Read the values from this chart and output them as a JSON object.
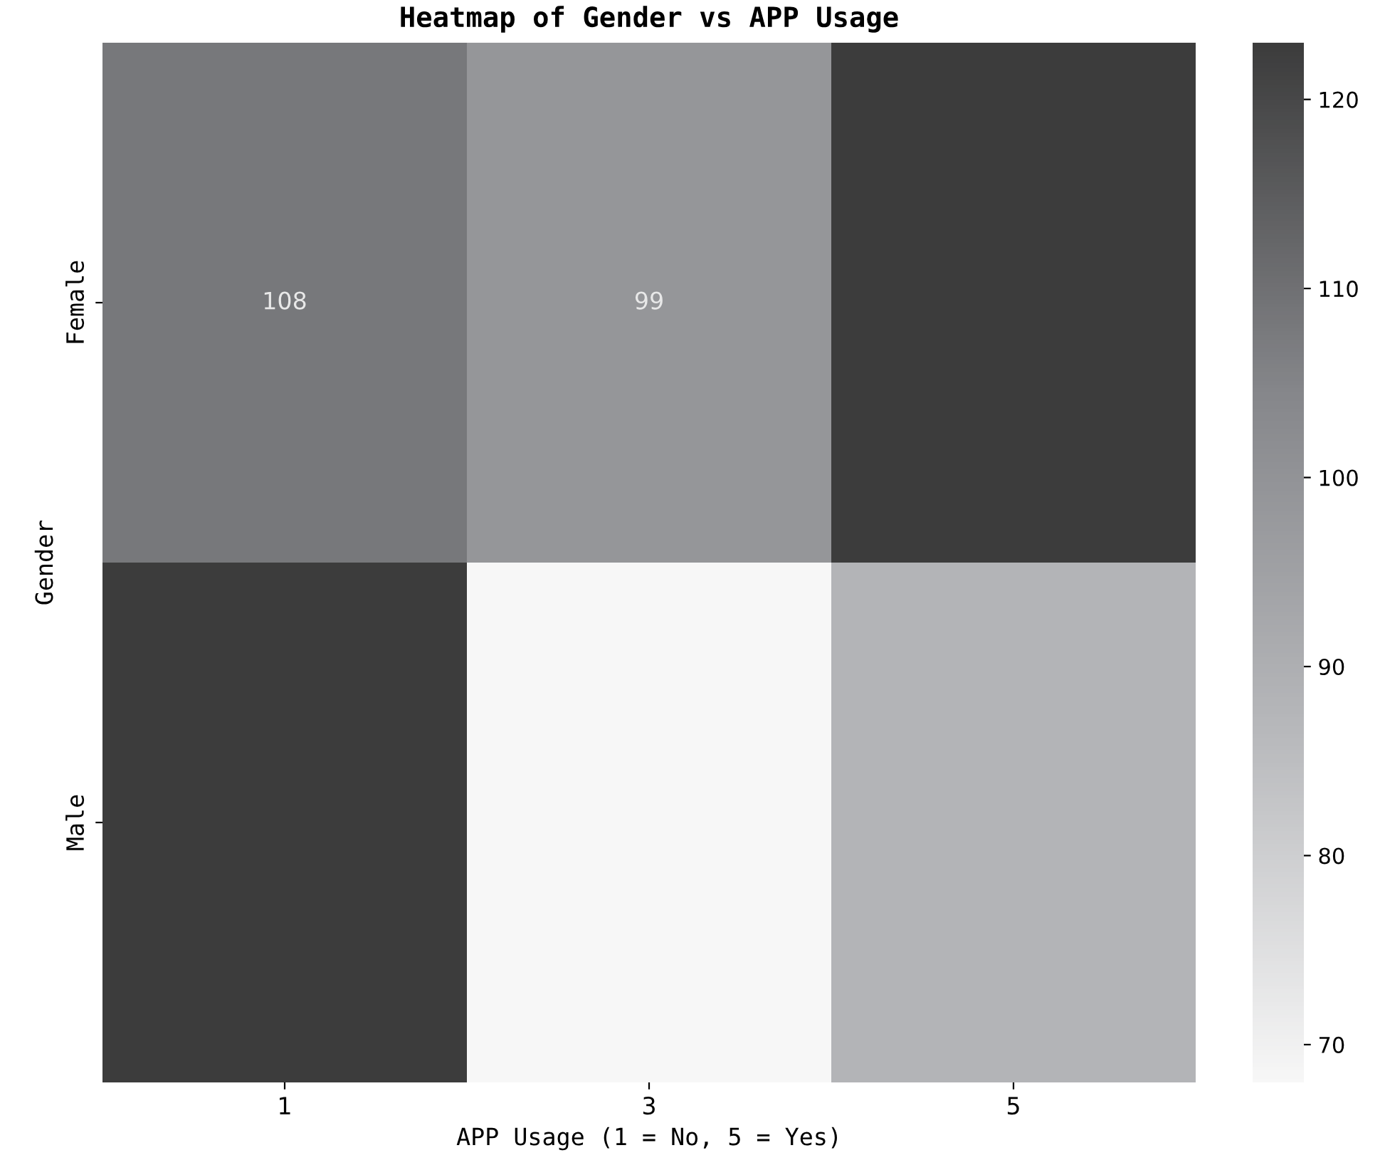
{
  "chart_data": {
    "type": "heatmap",
    "title": "Heatmap of Gender vs APP Usage",
    "xlabel": "APP Usage (1 = No, 5 = Yes)",
    "ylabel": "Gender",
    "categories": [
      "1",
      "3",
      "5"
    ],
    "y_categories": [
      "Female",
      "Male"
    ],
    "cells": [
      [
        108,
        99,
        123
      ],
      [
        123,
        68,
        88
      ]
    ],
    "cell_labels": [
      [
        "108",
        "99",
        null
      ],
      [
        null,
        null,
        null
      ]
    ],
    "clim": [
      68,
      123
    ],
    "cticks": [
      70,
      80,
      90,
      100,
      110,
      120
    ]
  }
}
